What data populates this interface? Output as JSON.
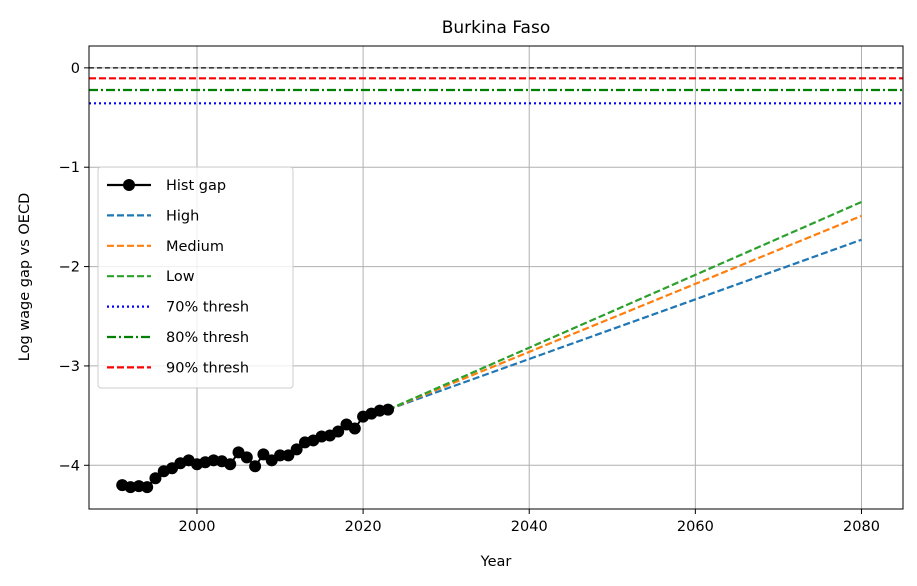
{
  "chart_data": {
    "type": "line",
    "title": "Burkina Faso",
    "xlabel": "Year",
    "ylabel": "Log wage gap vs OECD",
    "xlim": [
      1987,
      2085
    ],
    "ylim": [
      -4.44,
      0.22
    ],
    "xticks": [
      2000,
      2020,
      2040,
      2060,
      2080
    ],
    "yticks": [
      0,
      -1,
      -2,
      -3,
      -4
    ],
    "xtick_labels": [
      "2000",
      "2020",
      "2040",
      "2060",
      "2080"
    ],
    "ytick_labels": [
      "0",
      "−1",
      "−2",
      "−3",
      "−4"
    ],
    "grid": true,
    "legend_position": "center-left",
    "reference_line": {
      "y": 0,
      "color": "#000000",
      "style": "dashed"
    },
    "hist": {
      "name": "Hist gap",
      "color": "#000000",
      "x": [
        1991,
        1992,
        1993,
        1994,
        1995,
        1996,
        1997,
        1998,
        1999,
        2000,
        2001,
        2002,
        2003,
        2004,
        2005,
        2006,
        2007,
        2008,
        2009,
        2010,
        2011,
        2012,
        2013,
        2014,
        2015,
        2016,
        2017,
        2018,
        2019,
        2020,
        2021,
        2022,
        2023
      ],
      "y": [
        -4.2,
        -4.22,
        -4.21,
        -4.22,
        -4.13,
        -4.06,
        -4.03,
        -3.98,
        -3.95,
        -3.99,
        -3.97,
        -3.95,
        -3.96,
        -3.99,
        -3.87,
        -3.92,
        -4.01,
        -3.89,
        -3.95,
        -3.9,
        -3.9,
        -3.84,
        -3.77,
        -3.75,
        -3.71,
        -3.7,
        -3.66,
        -3.59,
        -3.63,
        -3.51,
        -3.48,
        -3.45,
        -3.44
      ]
    },
    "projections": [
      {
        "name": "High",
        "color": "#1f77b4",
        "style": "dashed",
        "x": [
          2023,
          2080
        ],
        "y": [
          -3.44,
          -1.73
        ]
      },
      {
        "name": "Medium",
        "color": "#ff7f0e",
        "style": "dashed",
        "x": [
          2023,
          2080
        ],
        "y": [
          -3.44,
          -1.49
        ]
      },
      {
        "name": "Low",
        "color": "#2ca02c",
        "style": "dashed",
        "x": [
          2023,
          2080
        ],
        "y": [
          -3.44,
          -1.35
        ]
      }
    ],
    "thresholds": [
      {
        "name": "70% thresh",
        "color": "#0000ff",
        "style": "dotted",
        "y": -0.357
      },
      {
        "name": "80% thresh",
        "color": "#008000",
        "style": "dashdot",
        "y": -0.223
      },
      {
        "name": "90% thresh",
        "color": "#ff0000",
        "style": "dashed",
        "y": -0.105
      }
    ]
  }
}
